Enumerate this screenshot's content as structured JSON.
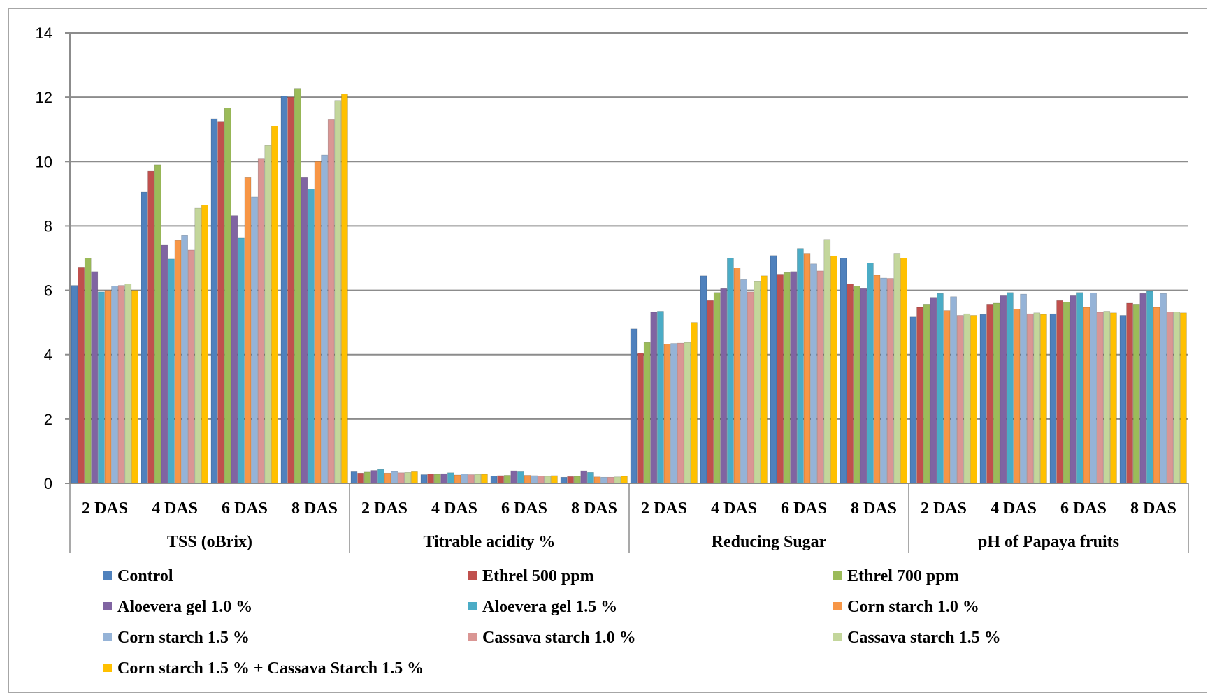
{
  "chart_data": {
    "type": "bar",
    "title": "",
    "xlabel": "",
    "ylabel": "",
    "ylim": [
      0,
      14
    ],
    "yticks": [
      0,
      2,
      4,
      6,
      8,
      10,
      12,
      14
    ],
    "grid": true,
    "legend_position": "bottom",
    "groups": [
      {
        "name": "TSS (oBrix)",
        "categories": [
          "2 DAS",
          "4 DAS",
          "6 DAS",
          "8 DAS"
        ]
      },
      {
        "name": "Titrable acidity %",
        "categories": [
          "2 DAS",
          "4 DAS",
          "6 DAS",
          "8 DAS"
        ]
      },
      {
        "name": "Reducing Sugar",
        "categories": [
          "2 DAS",
          "4 DAS",
          "6 DAS",
          "8 DAS"
        ]
      },
      {
        "name": "pH of Papaya fruits",
        "categories": [
          "2 DAS",
          "4 DAS",
          "6 DAS",
          "8 DAS"
        ]
      }
    ],
    "series": [
      {
        "name": "Control",
        "color": "#4f81bd",
        "values": [
          6.15,
          9.05,
          11.33,
          12.03,
          0.36,
          0.27,
          0.23,
          0.19,
          4.8,
          6.45,
          7.08,
          7.0,
          5.17,
          5.25,
          5.27,
          5.22
        ]
      },
      {
        "name": "Ethrel 500 ppm",
        "color": "#c0504d",
        "values": [
          6.72,
          9.7,
          11.25,
          12.0,
          0.32,
          0.29,
          0.24,
          0.21,
          4.05,
          5.68,
          6.5,
          6.2,
          5.47,
          5.57,
          5.68,
          5.6
        ]
      },
      {
        "name": "Ethrel 700 ppm",
        "color": "#9bbb59",
        "values": [
          7.0,
          9.9,
          11.67,
          12.27,
          0.35,
          0.28,
          0.25,
          0.22,
          4.38,
          5.93,
          6.55,
          6.13,
          5.57,
          5.6,
          5.63,
          5.57
        ]
      },
      {
        "name": "Aloevera gel 1.0 %",
        "color": "#8064a2",
        "values": [
          6.58,
          7.4,
          8.32,
          9.5,
          0.4,
          0.3,
          0.39,
          0.39,
          5.32,
          6.05,
          6.58,
          6.05,
          5.78,
          5.83,
          5.83,
          5.9
        ]
      },
      {
        "name": "Aloevera gel 1.5 %",
        "color": "#4bacc6",
        "values": [
          5.95,
          6.97,
          7.62,
          9.15,
          0.43,
          0.33,
          0.36,
          0.34,
          5.35,
          7.0,
          7.3,
          6.85,
          5.9,
          5.93,
          5.93,
          5.97
        ]
      },
      {
        "name": "Corn starch 1.0 %",
        "color": "#f79646",
        "values": [
          6.0,
          7.55,
          9.5,
          10.0,
          0.32,
          0.26,
          0.25,
          0.2,
          4.33,
          6.7,
          7.15,
          6.47,
          5.37,
          5.42,
          5.47,
          5.47
        ]
      },
      {
        "name": "Corn starch 1.5 %",
        "color": "#95b3d7",
        "values": [
          6.13,
          7.7,
          8.9,
          10.2,
          0.37,
          0.29,
          0.24,
          0.19,
          4.35,
          6.33,
          6.82,
          6.38,
          5.8,
          5.88,
          5.92,
          5.9
        ]
      },
      {
        "name": "Cassava starch 1.0 %",
        "color": "#da9694",
        "values": [
          6.15,
          7.25,
          10.1,
          11.3,
          0.33,
          0.27,
          0.23,
          0.19,
          4.36,
          5.95,
          6.6,
          6.37,
          5.22,
          5.27,
          5.32,
          5.33
        ]
      },
      {
        "name": "Cassava starch 1.5 %",
        "color": "#c3d69b",
        "values": [
          6.2,
          8.55,
          10.5,
          11.9,
          0.34,
          0.28,
          0.22,
          0.2,
          4.38,
          6.27,
          7.58,
          7.15,
          5.27,
          5.3,
          5.35,
          5.33
        ]
      },
      {
        "name": "Corn starch 1.5 % + Cassava Starch 1.5 %",
        "color": "#ffc000",
        "values": [
          6.0,
          8.65,
          11.1,
          12.1,
          0.36,
          0.28,
          0.24,
          0.22,
          5.0,
          6.45,
          7.07,
          7.0,
          5.22,
          5.25,
          5.3,
          5.3
        ]
      }
    ]
  }
}
